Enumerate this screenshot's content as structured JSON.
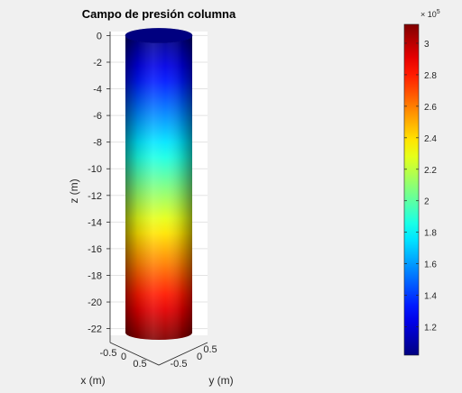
{
  "chart_data": {
    "type": "surface",
    "title": "Campo de presión columna",
    "xlabel": "x (m)",
    "ylabel": "y (m)",
    "zlabel": "z (m)",
    "zlim": [
      -22.5,
      0.3
    ],
    "z_ticks": [
      0,
      -2,
      -4,
      -6,
      -8,
      -10,
      -12,
      -14,
      -16,
      -18,
      -20,
      -22
    ],
    "z_tick_labels": [
      "0",
      "-2",
      "-4",
      "-6",
      "-8",
      "-10",
      "-12",
      "-14",
      "-16",
      "-18",
      "-20",
      "-22"
    ],
    "x_tick_labels": [
      "-0.5",
      "0",
      "0.5"
    ],
    "y_tick_labels": [
      "-0.5",
      "0",
      "0.5"
    ],
    "colormap": "jet",
    "colorbar": {
      "exponent_label": "× 10",
      "exponent": "5",
      "clim": [
        1.02,
        3.12
      ],
      "ticks": [
        1.2,
        1.4,
        1.6,
        1.8,
        2.0,
        2.2,
        2.4,
        2.6,
        2.8,
        3.0
      ],
      "tick_labels": [
        "1.2",
        "1.4",
        "1.6",
        "1.8",
        "2",
        "2.2",
        "2.4",
        "2.6",
        "2.8",
        "3"
      ]
    },
    "column_pressure_scaled": {
      "top": 1.02,
      "bottom": 3.12
    },
    "grid": true,
    "background_color": "#f0f0f0",
    "axes_color": "#ffffff"
  }
}
